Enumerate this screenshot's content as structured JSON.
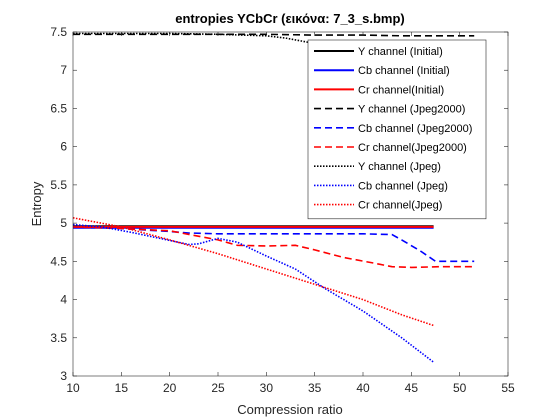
{
  "chart_data": {
    "type": "line",
    "title": "entropies YCbCr (εικόνα: 7_3_s.bmp)",
    "xlabel": "Compression ratio",
    "ylabel": "Entropy",
    "xlim": [
      10,
      55
    ],
    "ylim": [
      3,
      7.5
    ],
    "xticks": [
      10,
      15,
      20,
      25,
      30,
      35,
      40,
      45,
      50,
      55
    ],
    "yticks": [
      3,
      3.5,
      4,
      4.5,
      5,
      5.5,
      6,
      6.5,
      7,
      7.5
    ],
    "xtick_labels": [
      "10",
      "15",
      "20",
      "25",
      "30",
      "35",
      "40",
      "45",
      "50",
      "55"
    ],
    "ytick_labels": [
      "3",
      "3.5",
      "4",
      "4.5",
      "5",
      "5.5",
      "6",
      "6.5",
      "7",
      "7.5"
    ],
    "legend_position": "top-right",
    "series": [
      {
        "name": "Y channel (Initial)",
        "color": "#000000",
        "dash": "solid",
        "x": [
          10,
          47.3
        ],
        "y": [
          4.96,
          4.96
        ]
      },
      {
        "name": "Cb channel (Initial)",
        "color": "#0000ff",
        "dash": "solid",
        "x": [
          10,
          47.3
        ],
        "y": [
          4.94,
          4.94
        ]
      },
      {
        "name": "Cr channel(Initial)",
        "color": "#ff0000",
        "dash": "solid",
        "x": [
          10,
          47.3
        ],
        "y": [
          4.95,
          4.95
        ]
      },
      {
        "name": "Y channel (Jpeg2000)",
        "color": "#000000",
        "dash": "dashed",
        "x": [
          10,
          15,
          20,
          25,
          30,
          35,
          40,
          44,
          47,
          51.5
        ],
        "y": [
          7.47,
          7.47,
          7.47,
          7.47,
          7.47,
          7.46,
          7.46,
          7.45,
          7.45,
          7.45
        ]
      },
      {
        "name": "Cb channel (Jpeg2000)",
        "color": "#0000ff",
        "dash": "dashed",
        "x": [
          10,
          15,
          20,
          22,
          25,
          30,
          35,
          40,
          43,
          44,
          46,
          47.5,
          51.5
        ],
        "y": [
          4.95,
          4.93,
          4.89,
          4.87,
          4.86,
          4.86,
          4.86,
          4.86,
          4.85,
          4.78,
          4.63,
          4.5,
          4.5
        ]
      },
      {
        "name": "Cr channel(Jpeg2000)",
        "color": "#ff0000",
        "dash": "dashed",
        "x": [
          10,
          15,
          20,
          25,
          27,
          30,
          33,
          35,
          38,
          41,
          43,
          45,
          48,
          51.5
        ],
        "y": [
          4.95,
          4.93,
          4.9,
          4.78,
          4.71,
          4.7,
          4.71,
          4.65,
          4.55,
          4.48,
          4.43,
          4.42,
          4.43,
          4.43
        ]
      },
      {
        "name": "Y channel (Jpeg)",
        "color": "#000000",
        "dash": "dotted",
        "x": [
          10,
          15,
          20,
          25,
          30,
          32,
          35,
          38,
          40,
          42,
          44,
          45,
          46,
          47.3
        ],
        "y": [
          7.48,
          7.48,
          7.48,
          7.47,
          7.45,
          7.42,
          7.35,
          7.25,
          7.15,
          7.0,
          6.85,
          6.75,
          6.65,
          6.55
        ]
      },
      {
        "name": "Cb channel (Jpeg)",
        "color": "#0000ff",
        "dash": "dotted",
        "x": [
          10,
          13,
          16,
          19,
          22,
          23,
          25,
          27,
          30,
          33,
          36,
          40,
          44,
          47.3
        ],
        "y": [
          4.98,
          4.95,
          4.88,
          4.8,
          4.72,
          4.73,
          4.8,
          4.75,
          4.57,
          4.4,
          4.15,
          3.85,
          3.5,
          3.18
        ]
      },
      {
        "name": "Cr channel(Jpeg)",
        "color": "#ff0000",
        "dash": "dotted",
        "x": [
          10,
          15,
          20,
          25,
          30,
          35,
          40,
          44,
          47.3
        ],
        "y": [
          5.07,
          4.95,
          4.78,
          4.6,
          4.4,
          4.2,
          4.0,
          3.8,
          3.66
        ]
      }
    ]
  }
}
